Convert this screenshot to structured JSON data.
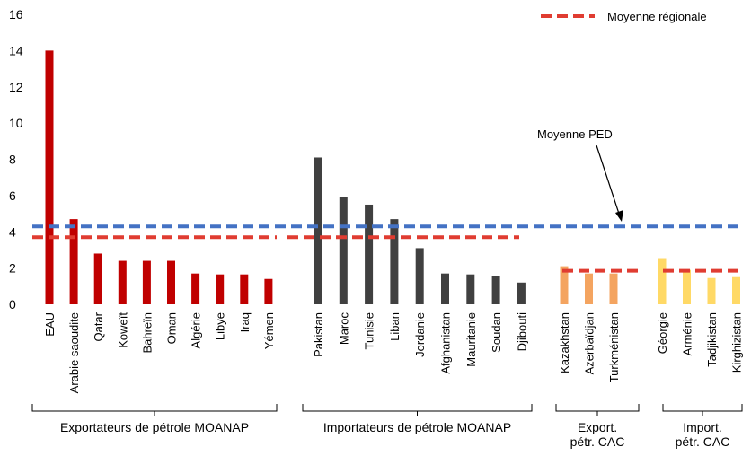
{
  "chart_data": {
    "type": "bar",
    "ylim": [
      0,
      16
    ],
    "yticks": [
      "0",
      "2",
      "4",
      "6",
      "8",
      "10",
      "12",
      "14",
      "16"
    ],
    "legend": {
      "label": "Moyenne régionale",
      "position": "top-right"
    },
    "annotation": "Moyenne PED",
    "ped_average": 4.3,
    "colors": {
      "oil_exporters": "#C00000",
      "oil_importers": "#404040",
      "cca_exporters": "#F4A460",
      "cca_importers": "#FFD966",
      "regional_line": "#E03C31",
      "ped_line": "#4472C4"
    },
    "groups": [
      {
        "label": "Exportateurs de pétrole MOANAP",
        "color_key": "oil_exporters",
        "regional_average": 3.7,
        "categories": [
          "EAU",
          "Arabie saoudite",
          "Qatar",
          "Koweït",
          "Bahreïn",
          "Oman",
          "Algérie",
          "Libye",
          "Iraq",
          "Yémen"
        ],
        "values": [
          14.0,
          4.7,
          2.8,
          2.4,
          2.4,
          2.4,
          1.7,
          1.65,
          1.65,
          1.4
        ]
      },
      {
        "label": "Importateurs de pétrole MOANAP",
        "color_key": "oil_importers",
        "regional_average": 3.7,
        "categories": [
          "Pakistan",
          "Maroc",
          "Tunisie",
          "Liban",
          "Jordanie",
          "Afghanistan",
          "Mauritanie",
          "Soudan",
          "Djibouti"
        ],
        "values": [
          8.1,
          5.9,
          5.5,
          4.7,
          3.1,
          1.7,
          1.65,
          1.55,
          1.2
        ]
      },
      {
        "label": "Export. pétr. CAC",
        "color_key": "cca_exporters",
        "regional_average": 1.85,
        "categories": [
          "Kazakhstan",
          "Azerbaïdjan",
          "Turkménistan"
        ],
        "values": [
          2.1,
          1.7,
          1.7
        ]
      },
      {
        "label": "Import. pétr. CAC",
        "color_key": "cca_importers",
        "regional_average": 1.85,
        "categories": [
          "Géorgie",
          "Arménie",
          "Tadjikistan",
          "Kirghizistan"
        ],
        "values": [
          2.55,
          1.9,
          1.45,
          1.5
        ]
      }
    ]
  }
}
